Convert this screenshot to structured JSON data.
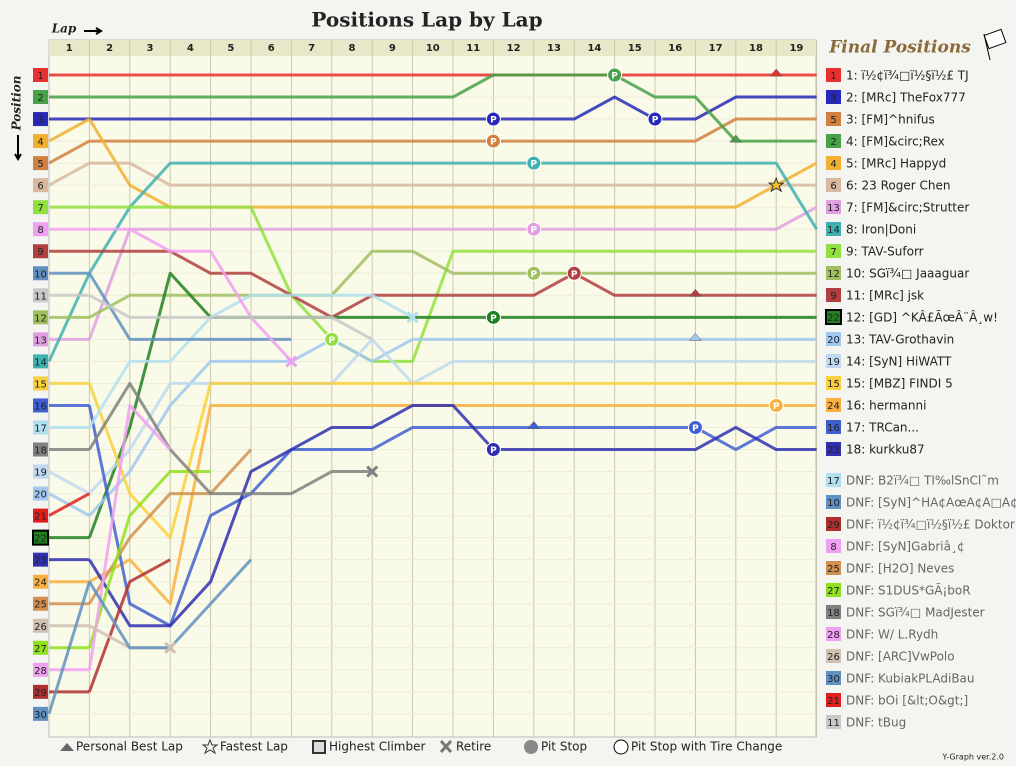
{
  "chart_data": {
    "type": "lapchart",
    "title": "Positions Lap by Lap",
    "x_label": "Lap",
    "y_label": "Position",
    "legend_title": "Final Positions",
    "credit": "Y-Graph ver.2.0",
    "pit_letter": "P",
    "laps": [
      1,
      2,
      3,
      4,
      5,
      6,
      7,
      8,
      9,
      10,
      11,
      12,
      13,
      14,
      15,
      16,
      17,
      18,
      19
    ],
    "start_grid": [
      1,
      2,
      3,
      4,
      5,
      6,
      7,
      8,
      9,
      10,
      11,
      12,
      13,
      14,
      15,
      16,
      17,
      18,
      19,
      20,
      21,
      22,
      23,
      24,
      25,
      26,
      27,
      28,
      29,
      30
    ],
    "highest_climber": 22,
    "legend": [
      "Personal Best Lap",
      "Fastest Lap",
      "Highest Climber",
      "Retire",
      "Pit Stop",
      "Pit Stop with Tire Change"
    ],
    "series": [
      {
        "name": "1: ï½¢ï¾□ï½§ï½£ TJ",
        "number": 1,
        "color": "#e83030",
        "values": [
          1,
          1,
          1,
          1,
          1,
          1,
          1,
          1,
          1,
          1,
          1,
          1,
          1,
          1,
          1,
          1,
          1,
          1,
          1
        ]
      },
      {
        "name": "2: [MRc] TheFox777",
        "number": 3,
        "color": "#2828b8",
        "values": [
          3,
          3,
          3,
          3,
          3,
          3,
          3,
          3,
          3,
          3,
          3,
          3,
          3,
          2,
          3,
          3,
          2,
          2,
          2
        ]
      },
      {
        "name": "3: [FM]^hnifus",
        "number": 5,
        "color": "#d08040",
        "values": [
          4,
          4,
          4,
          4,
          4,
          4,
          4,
          4,
          4,
          4,
          4,
          4,
          4,
          4,
          4,
          4,
          3,
          3,
          3
        ]
      },
      {
        "name": "4: [FM]&circ;Rex",
        "number": 2,
        "color": "#48a048",
        "values": [
          2,
          2,
          2,
          2,
          2,
          2,
          2,
          2,
          2,
          2,
          1,
          1,
          1,
          1,
          2,
          2,
          4,
          4,
          4
        ]
      },
      {
        "name": "5: [MRc] Happyd",
        "number": 4,
        "color": "#f0b030",
        "values": [
          3,
          6,
          7,
          7,
          7,
          7,
          7,
          7,
          7,
          7,
          7,
          7,
          7,
          7,
          7,
          7,
          7,
          6,
          5
        ]
      },
      {
        "name": "6: 23 Roger Chen",
        "number": 6,
        "color": "#d8b8a0",
        "values": [
          5,
          5,
          6,
          6,
          6,
          6,
          6,
          6,
          6,
          6,
          6,
          6,
          6,
          6,
          6,
          6,
          6,
          6,
          6
        ]
      },
      {
        "name": "7: [FM]&circ;Strutter",
        "number": 13,
        "color": "#e0a0e0",
        "values": [
          13,
          8,
          8,
          8,
          8,
          8,
          8,
          8,
          8,
          8,
          8,
          8,
          8,
          8,
          8,
          8,
          8,
          8,
          7
        ]
      },
      {
        "name": "8: Iron|Doni",
        "number": 14,
        "color": "#40b0b0",
        "values": [
          10,
          7,
          5,
          5,
          5,
          5,
          5,
          5,
          5,
          5,
          5,
          5,
          5,
          5,
          5,
          5,
          5,
          5,
          8
        ]
      },
      {
        "name": "9: TAV-Suforr",
        "number": 7,
        "color": "#90e040",
        "values": [
          7,
          7,
          7,
          7,
          7,
          11,
          13,
          14,
          14,
          9,
          9,
          9,
          9,
          9,
          9,
          9,
          9,
          9,
          9
        ]
      },
      {
        "name": "10: SGï¾□ Jaaaguar",
        "number": 12,
        "color": "#a0c060",
        "values": [
          12,
          11,
          11,
          11,
          11,
          11,
          11,
          9,
          9,
          10,
          10,
          10,
          10,
          10,
          10,
          10,
          10,
          10,
          10
        ]
      },
      {
        "name": "11: [MRc] jsk",
        "number": 9,
        "color": "#b04040",
        "values": [
          9,
          9,
          9,
          10,
          10,
          11,
          12,
          11,
          11,
          11,
          11,
          11,
          10,
          11,
          11,
          11,
          11,
          11,
          11
        ]
      },
      {
        "name": "12: [GD] ^KÂ£ÃœÂ¨Â¸w!",
        "number": 22,
        "color": "#208020",
        "values": [
          22,
          17,
          10,
          12,
          12,
          12,
          12,
          12,
          12,
          12,
          12,
          12,
          12,
          12,
          12,
          12,
          12,
          12,
          12
        ]
      },
      {
        "name": "13: TAV-Grothavin",
        "number": 20,
        "color": "#a0c8f0",
        "values": [
          21,
          19,
          16,
          14,
          14,
          14,
          13,
          14,
          13,
          13,
          13,
          13,
          13,
          13,
          13,
          13,
          13,
          13,
          13
        ]
      },
      {
        "name": "14: [SyN] HiWATT",
        "number": 19,
        "color": "#c0d8f0",
        "values": [
          20,
          18,
          15,
          15,
          15,
          15,
          15,
          13,
          15,
          14,
          14,
          14,
          14,
          14,
          14,
          14,
          14,
          14,
          14
        ]
      },
      {
        "name": "15: [MBZ] FINDI 5",
        "number": 15,
        "color": "#f8d040",
        "values": [
          15,
          20,
          22,
          15,
          15,
          15,
          15,
          15,
          15,
          15,
          15,
          15,
          15,
          15,
          15,
          15,
          15,
          15,
          15
        ]
      },
      {
        "name": "16: hermanni",
        "number": 24,
        "color": "#f8b040",
        "values": [
          24,
          23,
          25,
          16,
          16,
          16,
          16,
          16,
          16,
          16,
          16,
          16,
          16,
          16,
          16,
          16,
          16,
          16,
          16
        ]
      },
      {
        "name": "17: TRCan...",
        "number": 16,
        "color": "#4060d0",
        "values": [
          16,
          25,
          26,
          21,
          20,
          18,
          18,
          18,
          17,
          17,
          17,
          17,
          17,
          17,
          17,
          17,
          18,
          17,
          17
        ]
      },
      {
        "name": "18: kurkku87",
        "number": 23,
        "color": "#3030b0",
        "values": [
          23,
          26,
          26,
          24,
          19,
          18,
          17,
          17,
          16,
          16,
          18,
          18,
          18,
          18,
          18,
          18,
          17,
          18,
          18
        ]
      },
      {
        "name": "DNF: B2ï¾□ TI‰lSnCl˜m",
        "number": 17,
        "color": "#b0e0f0",
        "values": [
          17,
          14,
          14,
          12,
          11,
          11,
          11,
          11,
          12,
          null,
          null,
          null,
          null,
          null,
          null,
          null,
          null,
          null,
          null
        ]
      },
      {
        "name": "DNF: [SyN]^HA¢AœA¢A□A¢A¤A¢A–",
        "number": 10,
        "color": "#6090c0",
        "values": [
          10,
          13,
          13,
          13,
          13,
          13,
          null,
          null,
          null,
          null,
          null,
          null,
          null,
          null,
          null,
          null,
          null,
          null,
          null
        ]
      },
      {
        "name": "DNF: ï½¢ï¾□ï½§ï½£ Doktor",
        "number": 29,
        "color": "#b03030",
        "values": [
          29,
          24,
          23,
          null,
          null,
          null,
          null,
          null,
          null,
          null,
          null,
          null,
          null,
          null,
          null,
          null,
          null,
          null,
          null
        ]
      },
      {
        "name": "DNF: [SyN]Gabriâ¸¢",
        "number": 8,
        "color": "#f0a0f0",
        "values": [
          8,
          8,
          9,
          9,
          12,
          14,
          null,
          null,
          null,
          null,
          null,
          null,
          null,
          null,
          null,
          null,
          null,
          null,
          null
        ]
      },
      {
        "name": "DNF: [H2O] Neves",
        "number": 25,
        "color": "#d09050",
        "values": [
          25,
          22,
          20,
          20,
          18,
          null,
          null,
          null,
          null,
          null,
          null,
          null,
          null,
          null,
          null,
          null,
          null,
          null,
          null
        ]
      },
      {
        "name": "DNF: S1DUS*GÃ¡boR",
        "number": 27,
        "color": "#90e020",
        "values": [
          27,
          21,
          19,
          19,
          null,
          null,
          null,
          null,
          null,
          null,
          null,
          null,
          null,
          null,
          null,
          null,
          null,
          null,
          null
        ]
      },
      {
        "name": "DNF: SGï¾□ MadJester",
        "number": 18,
        "color": "#808080",
        "values": [
          18,
          15,
          18,
          20,
          20,
          20,
          19,
          19,
          null,
          null,
          null,
          null,
          null,
          null,
          null,
          null,
          null,
          null,
          null
        ]
      },
      {
        "name": "DNF: W/ L.Rydh",
        "number": 28,
        "color": "#f0a0f0",
        "values": [
          28,
          16,
          18,
          null,
          null,
          null,
          null,
          null,
          null,
          null,
          null,
          null,
          null,
          null,
          null,
          null,
          null,
          null,
          null
        ]
      },
      {
        "name": "DNF: [ARC]VwPolo",
        "number": 26,
        "color": "#d0c0b0",
        "values": [
          26,
          27,
          27,
          null,
          null,
          null,
          null,
          null,
          null,
          null,
          null,
          null,
          null,
          null,
          null,
          null,
          null,
          null,
          null
        ]
      },
      {
        "name": "DNF: KubiakPLAdiBau",
        "number": 30,
        "color": "#6090c0",
        "values": [
          24,
          27,
          27,
          25,
          23,
          null,
          null,
          null,
          null,
          null,
          null,
          null,
          null,
          null,
          null,
          null,
          null,
          null,
          null
        ]
      },
      {
        "name": "DNF: bOi [&lt;O&gt;]",
        "number": 21,
        "color": "#e02020",
        "values": [
          20,
          null,
          null,
          null,
          null,
          null,
          null,
          null,
          null,
          null,
          null,
          null,
          null,
          null,
          null,
          null,
          null,
          null,
          null
        ]
      },
      {
        "name": "DNF: tBug",
        "number": 11,
        "color": "#c8c8c8",
        "values": [
          11,
          12,
          12,
          12,
          12,
          12,
          12,
          13,
          null,
          null,
          null,
          null,
          null,
          null,
          null,
          null,
          null,
          null,
          null
        ]
      }
    ],
    "markers": [
      {
        "series": 1,
        "lap": 11,
        "kind": "pit"
      },
      {
        "series": 3,
        "lap": 14,
        "kind": "pit"
      },
      {
        "series": 1,
        "lap": 15,
        "kind": "pit"
      },
      {
        "series": 2,
        "lap": 11,
        "kind": "pit"
      },
      {
        "series": 7,
        "lap": 12,
        "kind": "pit"
      },
      {
        "series": 6,
        "lap": 12,
        "kind": "pit"
      },
      {
        "series": 9,
        "lap": 12,
        "kind": "pit"
      },
      {
        "series": 11,
        "lap": 11,
        "kind": "pit"
      },
      {
        "series": 10,
        "lap": 13,
        "kind": "pit"
      },
      {
        "series": 8,
        "lap": 7,
        "kind": "pit"
      },
      {
        "series": 17,
        "lap": 11,
        "kind": "pit"
      },
      {
        "series": 16,
        "lap": 16,
        "kind": "pit"
      },
      {
        "series": 15,
        "lap": 18,
        "kind": "pit"
      },
      {
        "series": 0,
        "lap": 18,
        "kind": "best"
      },
      {
        "series": 3,
        "lap": 17,
        "kind": "best"
      },
      {
        "series": 10,
        "lap": 16,
        "kind": "best"
      },
      {
        "series": 12,
        "lap": 16,
        "kind": "best"
      },
      {
        "series": 16,
        "lap": 12,
        "kind": "best"
      },
      {
        "series": 5,
        "lap": 18,
        "kind": "fastest"
      },
      {
        "series": 18,
        "lap": 9,
        "kind": "retire"
      },
      {
        "series": 21,
        "lap": 6,
        "kind": "retire"
      },
      {
        "series": 24,
        "lap": 8,
        "kind": "retire"
      },
      {
        "series": 26,
        "lap": 3,
        "kind": "retire"
      }
    ]
  }
}
